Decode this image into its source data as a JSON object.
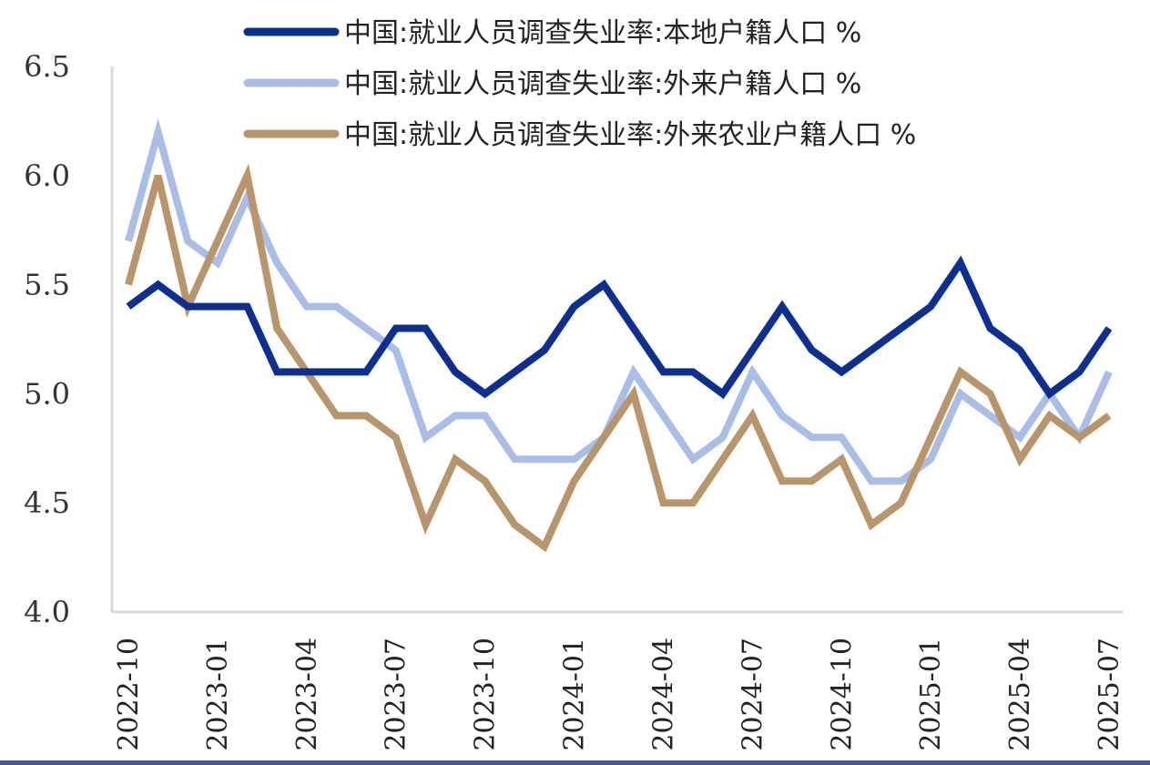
{
  "chart_data": {
    "type": "line",
    "x": [
      "2022-10",
      "2022-11",
      "2022-12",
      "2023-01",
      "2023-02",
      "2023-03",
      "2023-04",
      "2023-05",
      "2023-06",
      "2023-07",
      "2023-08",
      "2023-09",
      "2023-10",
      "2023-11",
      "2023-12",
      "2024-01",
      "2024-02",
      "2024-03",
      "2024-04",
      "2024-05",
      "2024-06",
      "2024-07",
      "2024-08",
      "2024-09",
      "2024-10",
      "2024-11",
      "2024-12",
      "2025-01",
      "2025-02",
      "2025-03",
      "2025-04",
      "2025-05",
      "2025-06",
      "2025-07"
    ],
    "xticks": [
      "2022-10",
      "2023-01",
      "2023-04",
      "2023-07",
      "2023-10",
      "2024-01",
      "2024-04",
      "2024-07",
      "2024-10",
      "2025-01",
      "2025-04",
      "2025-07"
    ],
    "ylim": [
      4.0,
      6.5
    ],
    "yticks": [
      "4.0",
      "4.5",
      "5.0",
      "5.5",
      "6.0",
      "6.5"
    ],
    "legend_position": "top",
    "series": [
      {
        "name": "中国:就业人员调查失业率:本地户籍人口 %",
        "color": "#0d2f8f",
        "values": [
          5.4,
          5.5,
          5.4,
          5.4,
          5.4,
          5.1,
          5.1,
          5.1,
          5.1,
          5.3,
          5.3,
          5.1,
          5.0,
          5.1,
          5.2,
          5.4,
          5.5,
          5.3,
          5.1,
          5.1,
          5.0,
          5.2,
          5.4,
          5.2,
          5.1,
          5.2,
          5.3,
          5.4,
          5.6,
          5.3,
          5.2,
          5.0,
          5.1,
          5.3
        ]
      },
      {
        "name": "中国:就业人员调查失业率:外来户籍人口 %",
        "color": "#a9bde6",
        "values": [
          5.7,
          6.2,
          5.7,
          5.6,
          5.9,
          5.6,
          5.4,
          5.4,
          5.3,
          5.2,
          4.8,
          4.9,
          4.9,
          4.7,
          4.7,
          4.7,
          4.8,
          5.1,
          4.9,
          4.7,
          4.8,
          5.1,
          4.9,
          4.8,
          4.8,
          4.6,
          4.6,
          4.7,
          5.0,
          4.9,
          4.8,
          5.0,
          4.8,
          5.1
        ]
      },
      {
        "name": "中国:就业人员调查失业率:外来农业户籍人口 %",
        "color": "#b8956a",
        "values": [
          5.5,
          6.0,
          5.4,
          5.7,
          6.0,
          5.3,
          5.1,
          4.9,
          4.9,
          4.8,
          4.4,
          4.7,
          4.6,
          4.4,
          4.3,
          4.6,
          4.8,
          5.0,
          4.5,
          4.5,
          4.7,
          4.9,
          4.6,
          4.6,
          4.7,
          4.4,
          4.5,
          4.8,
          5.1,
          5.0,
          4.7,
          4.9,
          4.8,
          4.9
        ]
      }
    ]
  }
}
